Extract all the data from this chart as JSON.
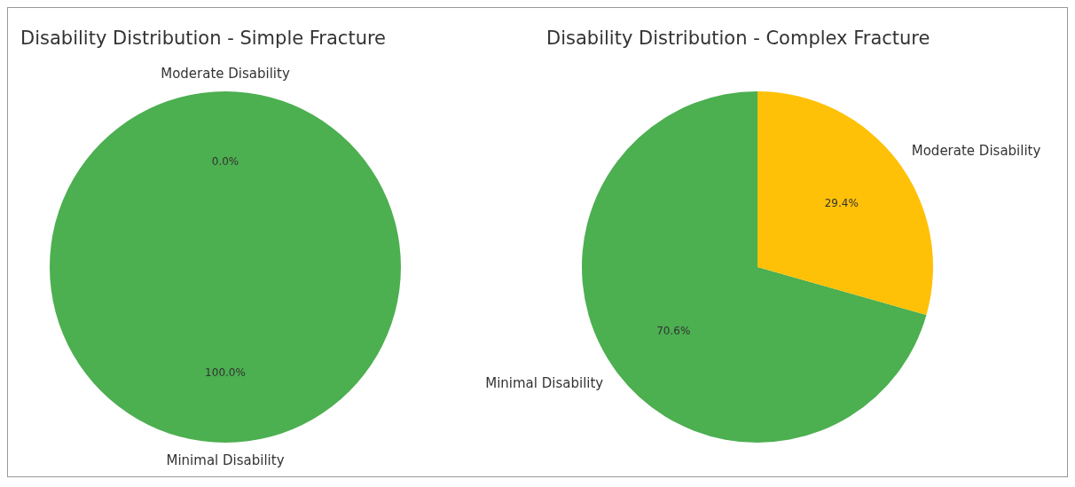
{
  "chart_data": [
    {
      "type": "pie",
      "title": "Disability Distribution - Simple Fracture",
      "categories": [
        "Minimal Disability",
        "Moderate Disability"
      ],
      "values": [
        100,
        0
      ],
      "colors": [
        "#4caf50",
        "#ffc107"
      ],
      "value_labels": [
        "100.0%",
        "0.0%"
      ]
    },
    {
      "type": "pie",
      "title": "Disability Distribution - Complex Fracture",
      "categories": [
        "Minimal Disability",
        "Moderate Disability"
      ],
      "values": [
        70.6,
        29.4
      ],
      "colors": [
        "#4caf50",
        "#ffc107"
      ],
      "value_labels": [
        "70.6%",
        "29.4%"
      ]
    }
  ]
}
